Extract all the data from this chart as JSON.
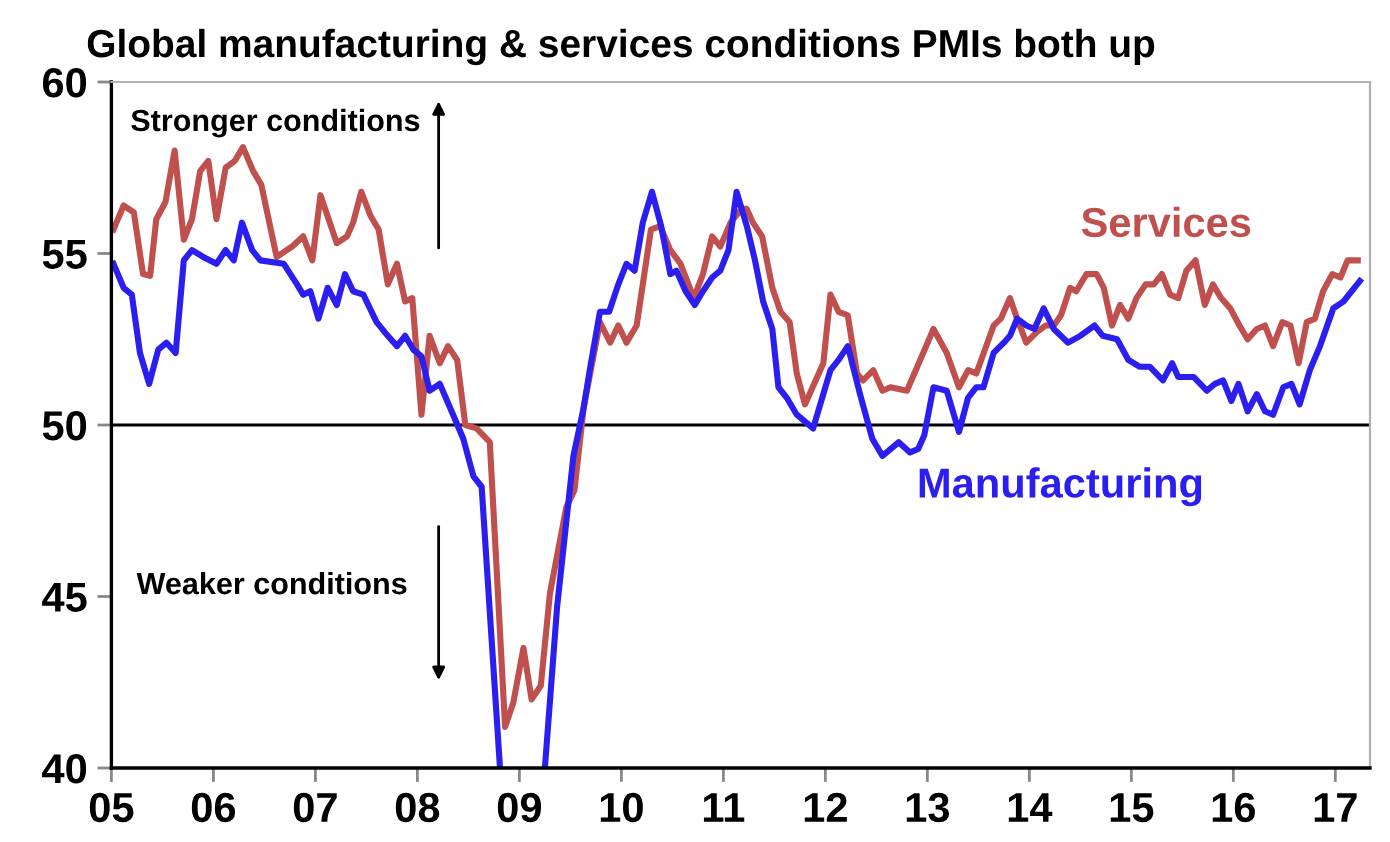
{
  "chart_data": {
    "type": "line",
    "title": "Global manufacturing & services conditions PMIs both up",
    "annotations": [
      "Stronger conditions",
      "Weaker conditions"
    ],
    "xlim": [
      2005,
      2017.34
    ],
    "ylim": [
      40,
      60
    ],
    "xticks": [
      {
        "value": 2005,
        "label": "05"
      },
      {
        "value": 2006,
        "label": "06"
      },
      {
        "value": 2007,
        "label": "07"
      },
      {
        "value": 2008,
        "label": "08"
      },
      {
        "value": 2009,
        "label": "09"
      },
      {
        "value": 2010,
        "label": "10"
      },
      {
        "value": 2011,
        "label": "11"
      },
      {
        "value": 2012,
        "label": "12"
      },
      {
        "value": 2013,
        "label": "13"
      },
      {
        "value": 2014,
        "label": "14"
      },
      {
        "value": 2015,
        "label": "15"
      },
      {
        "value": 2016,
        "label": "16"
      },
      {
        "value": 2017,
        "label": "17"
      }
    ],
    "yticks": [
      40,
      45,
      50,
      55,
      60
    ],
    "ref_lines": [
      {
        "axis": "y",
        "value": 50,
        "color": "#000000"
      }
    ],
    "grid": false,
    "marker": "none",
    "line_style": "solid",
    "series": [
      {
        "name": "Services",
        "color": "#c0504d",
        "x": [
          2005.02,
          2005.12,
          2005.22,
          2005.31,
          2005.38,
          2005.44,
          2005.53,
          2005.62,
          2005.71,
          2005.79,
          2005.87,
          2005.95,
          2006.03,
          2006.12,
          2006.21,
          2006.29,
          2006.39,
          2006.47,
          2006.62,
          2006.77,
          2006.88,
          2006.97,
          2007.05,
          2007.21,
          2007.31,
          2007.37,
          2007.45,
          2007.54,
          2007.62,
          2007.71,
          2007.8,
          2007.88,
          2007.95,
          2008.04,
          2008.12,
          2008.22,
          2008.3,
          2008.39,
          2008.47,
          2008.58,
          2008.71,
          2008.86,
          2008.94,
          2009.04,
          2009.12,
          2009.21,
          2009.3,
          2009.46,
          2009.54,
          2009.63,
          2009.79,
          2009.89,
          2009.97,
          2010.05,
          2010.15,
          2010.29,
          2010.38,
          2010.48,
          2010.58,
          2010.71,
          2010.8,
          2010.89,
          2010.97,
          2011.07,
          2011.18,
          2011.23,
          2011.29,
          2011.38,
          2011.48,
          2011.56,
          2011.65,
          2011.72,
          2011.8,
          2011.98,
          2012.05,
          2012.13,
          2012.22,
          2012.31,
          2012.37,
          2012.47,
          2012.56,
          2012.64,
          2012.8,
          2013.06,
          2013.19,
          2013.31,
          2013.4,
          2013.48,
          2013.65,
          2013.72,
          2013.81,
          2013.88,
          2013.97,
          2014.07,
          2014.16,
          2014.24,
          2014.31,
          2014.4,
          2014.46,
          2014.56,
          2014.66,
          2014.73,
          2014.81,
          2014.89,
          2014.97,
          2015.05,
          2015.14,
          2015.22,
          2015.3,
          2015.38,
          2015.46,
          2015.54,
          2015.63,
          2015.72,
          2015.8,
          2015.88,
          2015.97,
          2016.06,
          2016.14,
          2016.23,
          2016.31,
          2016.39,
          2016.48,
          2016.56,
          2016.64,
          2016.72,
          2016.8,
          2016.88,
          2016.97,
          2017.05,
          2017.12,
          2017.22
        ],
        "values": [
          55.7,
          56.4,
          56.2,
          54.4,
          54.35,
          56.0,
          56.5,
          58.0,
          55.4,
          56.0,
          57.4,
          57.7,
          56.0,
          57.5,
          57.7,
          58.1,
          57.4,
          57.0,
          54.9,
          55.2,
          55.5,
          54.8,
          56.7,
          55.3,
          55.5,
          55.9,
          56.8,
          56.1,
          55.7,
          54.1,
          54.7,
          53.6,
          53.7,
          50.3,
          52.6,
          51.8,
          52.3,
          51.9,
          50.0,
          49.9,
          49.5,
          41.2,
          41.9,
          43.5,
          42.0,
          42.4,
          45.1,
          47.6,
          48.1,
          50.5,
          53.0,
          52.4,
          52.9,
          52.4,
          52.9,
          55.7,
          55.8,
          55.1,
          54.7,
          53.7,
          54.4,
          55.5,
          55.2,
          55.9,
          56.3,
          56.3,
          55.9,
          55.5,
          54.0,
          53.3,
          53.0,
          51.5,
          50.6,
          51.8,
          53.8,
          53.3,
          53.2,
          51.5,
          51.3,
          51.6,
          51.0,
          51.1,
          51.0,
          52.8,
          52.1,
          51.1,
          51.6,
          51.5,
          52.9,
          53.1,
          53.7,
          53.1,
          52.4,
          52.7,
          52.9,
          52.9,
          53.2,
          54.0,
          53.9,
          54.4,
          54.4,
          54.0,
          52.9,
          53.5,
          53.1,
          53.7,
          54.1,
          54.1,
          54.4,
          53.8,
          53.7,
          54.5,
          54.8,
          53.5,
          54.1,
          53.7,
          53.4,
          52.9,
          52.5,
          52.8,
          52.9,
          52.3,
          53.0,
          52.9,
          51.8,
          53.0,
          53.1,
          53.9,
          54.4,
          54.3,
          54.8,
          54.8
        ]
      },
      {
        "name": "Manufacturing",
        "color": "#2b1ef0",
        "x": [
          2005.02,
          2005.12,
          2005.2,
          2005.28,
          2005.37,
          2005.46,
          2005.54,
          2005.63,
          2005.71,
          2005.79,
          2005.9,
          2006.03,
          2006.12,
          2006.2,
          2006.28,
          2006.38,
          2006.46,
          2006.69,
          2006.82,
          2006.88,
          2006.95,
          2007.03,
          2007.12,
          2007.21,
          2007.29,
          2007.37,
          2007.47,
          2007.6,
          2007.71,
          2007.8,
          2007.88,
          2007.96,
          2008.04,
          2008.12,
          2008.22,
          2008.35,
          2008.45,
          2008.55,
          2008.63,
          2008.81,
          2009.0,
          2009.25,
          2009.37,
          2009.53,
          2009.63,
          2009.69,
          2009.79,
          2009.88,
          2009.97,
          2010.05,
          2010.13,
          2010.21,
          2010.3,
          2010.39,
          2010.48,
          2010.54,
          2010.63,
          2010.72,
          2010.8,
          2010.89,
          2010.97,
          2011.05,
          2011.13,
          2011.23,
          2011.31,
          2011.39,
          2011.48,
          2011.54,
          2011.62,
          2011.72,
          2011.88,
          2012.05,
          2012.13,
          2012.22,
          2012.34,
          2012.46,
          2012.56,
          2012.72,
          2012.83,
          2012.91,
          2012.97,
          2013.06,
          2013.19,
          2013.31,
          2013.4,
          2013.48,
          2013.55,
          2013.65,
          2013.75,
          2013.81,
          2013.88,
          2013.97,
          2014.05,
          2014.14,
          2014.24,
          2014.38,
          2014.5,
          2014.64,
          2014.72,
          2014.86,
          2014.97,
          2015.08,
          2015.18,
          2015.31,
          2015.4,
          2015.46,
          2015.61,
          2015.74,
          2015.82,
          2015.9,
          2015.98,
          2016.05,
          2016.14,
          2016.23,
          2016.31,
          2016.39,
          2016.49,
          2016.57,
          2016.65,
          2016.75,
          2016.85,
          2016.98,
          2017.08,
          2017.24
        ],
        "values": [
          54.7,
          54.0,
          53.8,
          52.1,
          51.2,
          52.2,
          52.4,
          52.1,
          54.8,
          55.1,
          54.9,
          54.7,
          55.1,
          54.8,
          55.9,
          55.1,
          54.8,
          54.7,
          54.1,
          53.8,
          53.9,
          53.1,
          54.0,
          53.5,
          54.4,
          53.9,
          53.8,
          53.0,
          52.6,
          52.3,
          52.6,
          52.2,
          52.0,
          51.0,
          51.2,
          50.3,
          49.6,
          48.5,
          48.2,
          40.0,
          null,
          40.0,
          44.7,
          49.1,
          50.5,
          51.6,
          53.3,
          53.3,
          54.1,
          54.7,
          54.5,
          55.9,
          56.8,
          55.8,
          54.4,
          54.5,
          53.9,
          53.5,
          53.9,
          54.3,
          54.5,
          55.1,
          56.8,
          55.8,
          54.8,
          53.6,
          52.8,
          51.1,
          50.8,
          50.3,
          49.9,
          51.6,
          51.9,
          52.3,
          50.9,
          49.6,
          49.1,
          49.5,
          49.2,
          49.3,
          49.7,
          51.1,
          51.0,
          49.8,
          50.8,
          51.1,
          51.1,
          52.1,
          52.4,
          52.6,
          53.1,
          52.9,
          52.8,
          53.4,
          52.8,
          52.4,
          52.6,
          52.9,
          52.6,
          52.5,
          51.9,
          51.7,
          51.7,
          51.3,
          51.8,
          51.4,
          51.4,
          51.0,
          51.2,
          51.3,
          50.7,
          51.2,
          50.4,
          50.9,
          50.4,
          50.3,
          51.1,
          51.2,
          50.6,
          51.6,
          52.3,
          53.4,
          53.6,
          54.2
        ]
      }
    ]
  }
}
